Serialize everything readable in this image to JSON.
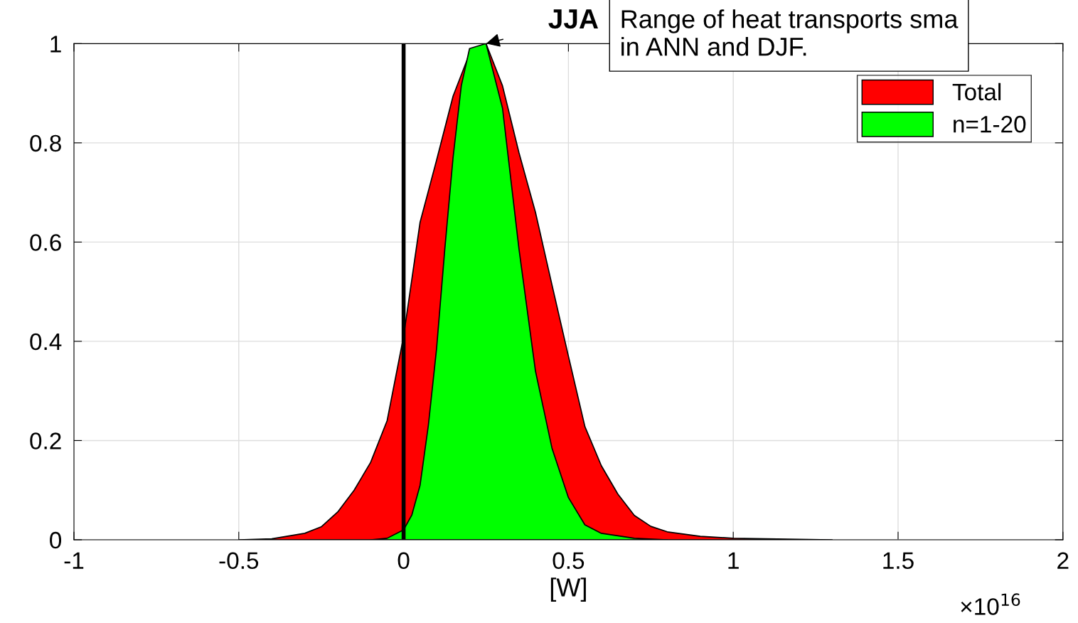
{
  "chart_data": {
    "type": "area",
    "xlabel": "[W]",
    "xlim": [
      -1,
      2
    ],
    "xticks": [
      -1,
      -0.5,
      0,
      0.5,
      1,
      1.5,
      2
    ],
    "ylim": [
      0,
      1
    ],
    "yticks": [
      0,
      0.2,
      0.4,
      0.6,
      0.8,
      1
    ],
    "grid": true,
    "legend": "top right",
    "series": [
      {
        "name": "Total",
        "color": "#ff0000",
        "x": [
          -0.5,
          -0.4,
          -0.3,
          -0.25,
          -0.2,
          -0.15,
          -0.1,
          -0.05,
          0,
          0.05,
          0.1,
          0.15,
          0.2,
          0.25,
          0.3,
          0.35,
          0.4,
          0.45,
          0.5,
          0.55,
          0.6,
          0.65,
          0.7,
          0.75,
          0.8,
          0.9,
          1.0,
          1.2,
          1.3
        ],
        "values": [
          0,
          0.002,
          0.013,
          0.026,
          0.056,
          0.1,
          0.156,
          0.24,
          0.41,
          0.64,
          0.765,
          0.894,
          0.98,
          1.0,
          0.915,
          0.78,
          0.66,
          0.514,
          0.37,
          0.228,
          0.149,
          0.092,
          0.049,
          0.027,
          0.016,
          0.007,
          0.003,
          0.001,
          0
        ]
      },
      {
        "name": "n=1-20",
        "color": "#00ff00",
        "x": [
          -0.1,
          -0.05,
          0,
          0.025,
          0.05,
          0.075,
          0.1,
          0.125,
          0.15,
          0.175,
          0.2,
          0.25,
          0.3,
          0.35,
          0.4,
          0.45,
          0.5,
          0.55,
          0.6,
          0.7,
          0.8
        ],
        "values": [
          0,
          0.003,
          0.02,
          0.05,
          0.11,
          0.23,
          0.385,
          0.586,
          0.77,
          0.915,
          0.99,
          1.0,
          0.87,
          0.586,
          0.34,
          0.185,
          0.085,
          0.03,
          0.013,
          0.003,
          0
        ]
      }
    ],
    "ref_lines": [
      {
        "axis": "x",
        "value": 0,
        "color": "#000000"
      }
    ],
    "annotations": [
      {
        "text": "JJA",
        "x": 0.25,
        "y": 1
      },
      "Range of heat transports sma\nin ANN and DJF.",
      "×10$^{16}$"
    ]
  }
}
